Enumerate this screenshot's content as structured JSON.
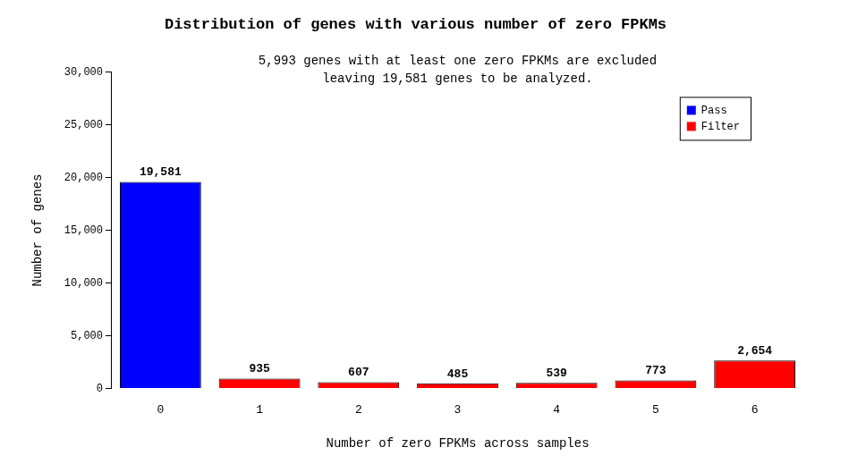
{
  "chart_data": {
    "type": "bar",
    "title": "Distribution of genes with various number of zero FPKMs",
    "subtitle": [
      "5,993 genes with at least one zero FPKMs are excluded",
      "leaving 19,581 genes to be analyzed."
    ],
    "x_label": "Number of zero FPKMs across samples",
    "y_label": "Number of genes",
    "categories": [
      "0",
      "1",
      "2",
      "3",
      "4",
      "5",
      "6"
    ],
    "series": [
      {
        "name": "Pass",
        "color": "#0000ff",
        "values": [
          19581,
          null,
          null,
          null,
          null,
          null,
          null
        ],
        "value_labels": [
          "19,581",
          null,
          null,
          null,
          null,
          null,
          null
        ]
      },
      {
        "name": "Filter",
        "color": "#ff0000",
        "values": [
          null,
          935,
          607,
          485,
          539,
          773,
          2654
        ],
        "value_labels": [
          null,
          "935",
          "607",
          "485",
          "539",
          "773",
          "2,654"
        ]
      }
    ],
    "ylim": [
      0,
      30000
    ],
    "yticks": [
      0,
      {
        "value": 5000,
        "label": "5,000"
      },
      {
        "value": 10000,
        "label": "10,000"
      },
      {
        "value": 15000,
        "label": "15,000"
      },
      {
        "value": 20000,
        "label": "20,000"
      },
      {
        "value": 25000,
        "label": "25,000"
      },
      {
        "value": 30000,
        "label": "30,000"
      }
    ],
    "grid": false,
    "legend": "top-right",
    "data_labels": true
  }
}
